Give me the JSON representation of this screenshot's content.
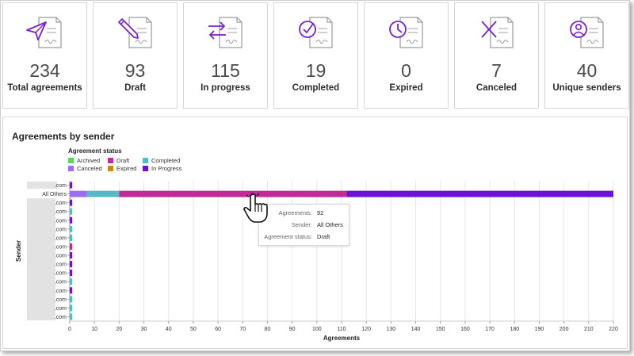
{
  "cards": [
    {
      "value": "234",
      "label": "Total agreements",
      "icon": "send-icon"
    },
    {
      "value": "93",
      "label": "Draft",
      "icon": "pen-icon"
    },
    {
      "value": "115",
      "label": "In progress",
      "icon": "swap-arrows-icon"
    },
    {
      "value": "19",
      "label": "Completed",
      "icon": "check-circle-icon"
    },
    {
      "value": "0",
      "label": "Expired",
      "icon": "clock-icon"
    },
    {
      "value": "7",
      "label": "Canceled",
      "icon": "x-cancel-icon"
    },
    {
      "value": "40",
      "label": "Unique senders",
      "icon": "user-circle-icon"
    }
  ],
  "panel": {
    "title": "Agreements by sender",
    "legend_title": "Agreement status",
    "legend": [
      {
        "name": "Archived",
        "color": "#5dd35d"
      },
      {
        "name": "Draft",
        "color": "#c22a95"
      },
      {
        "name": "Completed",
        "color": "#57b9c4"
      },
      {
        "name": "Canceled",
        "color": "#9c6cf1"
      },
      {
        "name": "Expired",
        "color": "#c58a14"
      },
      {
        "name": "In Progress",
        "color": "#6a12d6"
      }
    ]
  },
  "chart_data": {
    "type": "bar",
    "orientation": "horizontal",
    "stacked": true,
    "xlabel": "Agreements",
    "ylabel": "Sender",
    "xlim": [
      0,
      220
    ],
    "xticks": [
      0,
      10,
      20,
      30,
      40,
      50,
      60,
      70,
      80,
      90,
      100,
      110,
      120,
      130,
      140,
      150,
      160,
      170,
      180,
      190,
      200,
      210,
      220
    ],
    "grid": true,
    "legend_position": "top-left",
    "categories": [
      ".com",
      "All Others",
      ".com",
      ".com",
      ".com",
      ".com",
      ".com",
      ".com",
      ".com",
      ".com",
      ".com",
      ".com",
      ".com",
      ".com",
      ".com",
      ".com"
    ],
    "series": [
      {
        "name": "Archived",
        "color": "#5dd35d",
        "values": [
          0,
          0,
          0,
          0,
          0,
          0,
          0,
          0,
          0,
          0,
          0,
          0,
          0,
          0,
          0,
          0
        ]
      },
      {
        "name": "Canceled",
        "color": "#9c6cf1",
        "values": [
          0,
          7,
          0,
          0,
          0,
          0,
          0,
          0,
          0,
          0,
          0,
          0,
          0,
          0,
          0,
          0
        ]
      },
      {
        "name": "Completed",
        "color": "#57b9c4",
        "values": [
          0,
          13,
          0,
          1,
          0,
          1,
          1,
          0,
          0,
          0,
          0,
          1,
          0,
          1,
          1,
          1
        ]
      },
      {
        "name": "Draft",
        "color": "#c22a95",
        "values": [
          0,
          92,
          0,
          0,
          0,
          0,
          0,
          1,
          0,
          0,
          0,
          0,
          0,
          0,
          0,
          0
        ]
      },
      {
        "name": "Expired",
        "color": "#c58a14",
        "values": [
          0,
          0,
          0,
          0,
          0,
          0,
          0,
          0,
          0,
          0,
          0,
          0,
          0,
          0,
          0,
          0
        ]
      },
      {
        "name": "In Progress",
        "color": "#6a12d6",
        "values": [
          1,
          108,
          1,
          0,
          1,
          0,
          0,
          0,
          1,
          1,
          1,
          0,
          1,
          0,
          0,
          0
        ]
      }
    ]
  },
  "tooltip": {
    "rows": [
      {
        "key": "Agreements:",
        "value": "92"
      },
      {
        "key": "Sender:",
        "value": "All Others"
      },
      {
        "key": "Agreement status:",
        "value": "Draft"
      }
    ]
  },
  "colors": {
    "accent": "#6a12d6"
  }
}
